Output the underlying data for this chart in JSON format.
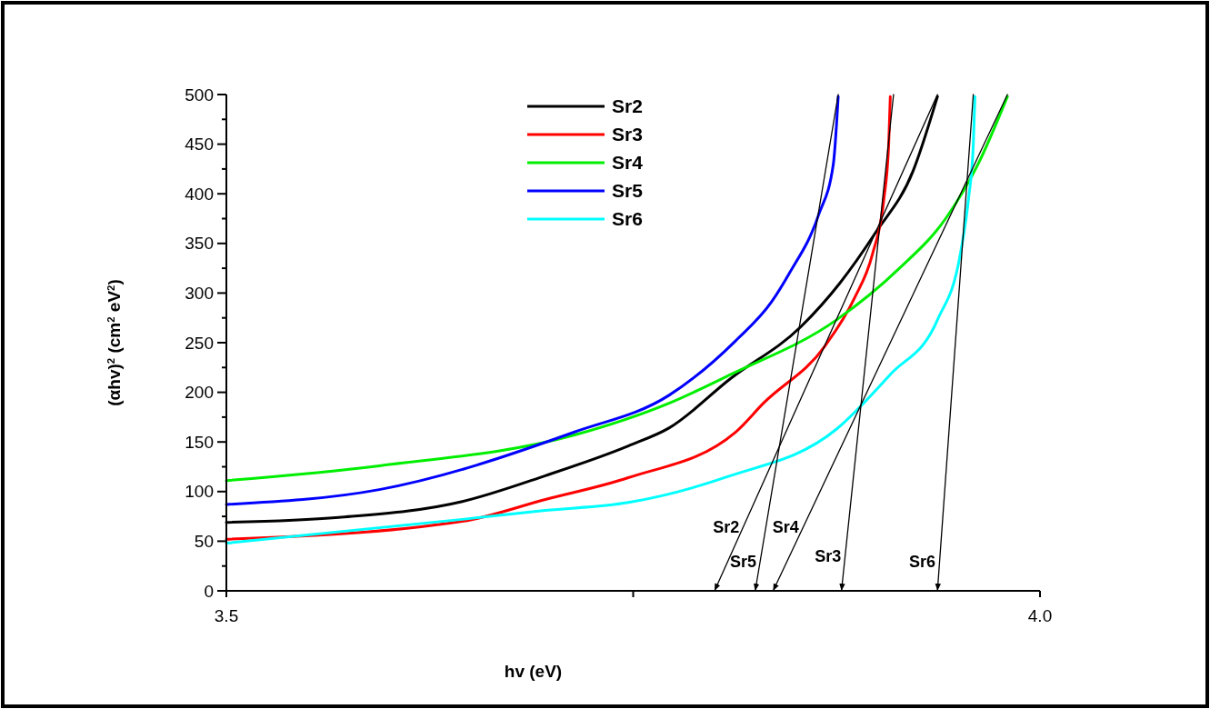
{
  "chart_data": {
    "type": "line",
    "xlabel": "hv (eV)",
    "ylabel": "(αhv)$^{2}$ (cm$^{2}$ eV$^{2}$)",
    "xlim": [
      3.5,
      4.0
    ],
    "xticks": [
      3.5,
      {
        "value": 3.75,
        "label": null
      },
      {
        "value": 4.0,
        "label": "4.0"
      }
    ],
    "ylim": [
      0,
      500
    ],
    "yticks": [
      0,
      {
        "value": 25,
        "label": null
      },
      50,
      {
        "value": 75,
        "label": null
      },
      100,
      {
        "value": 125,
        "label": null
      },
      150,
      {
        "value": 175,
        "label": null
      },
      200,
      {
        "value": 225,
        "label": null
      },
      250,
      {
        "value": 275,
        "label": null
      },
      300,
      {
        "value": 325,
        "label": null
      },
      350,
      {
        "value": 375,
        "label": null
      },
      400,
      {
        "value": 425,
        "label": null
      },
      450,
      {
        "value": 475,
        "label": null
      },
      500
    ],
    "grid": false,
    "legend": "top",
    "marker": "none",
    "line_style": "solid",
    "series": [
      {
        "name": "Sr2",
        "color": "#000000",
        "x": [
          3.5,
          3.569,
          3.645,
          3.696,
          3.747,
          3.772,
          3.81,
          3.853,
          3.877,
          3.899,
          3.922,
          3.937
        ],
        "values": [
          69,
          74,
          90,
          116,
          146,
          164,
          214,
          266,
          310,
          361,
          423,
          498
        ]
      },
      {
        "name": "Sr3",
        "color": "#ff0000",
        "x": [
          3.5,
          3.645,
          3.696,
          3.747,
          3.813,
          3.83,
          3.868,
          3.886,
          3.897,
          3.904,
          3.907,
          3.908
        ],
        "values": [
          52,
          70,
          92,
          114,
          160,
          189,
          247,
          295,
          339,
          394,
          449,
          498
        ]
      },
      {
        "name": "Sr4",
        "color": "#00ee00",
        "x": [
          3.5,
          3.594,
          3.714,
          3.772,
          3.81,
          3.875,
          3.913,
          3.942,
          3.962,
          3.98
        ],
        "values": [
          111,
          126,
          157,
          189,
          218,
          273,
          324,
          375,
          430,
          498
        ]
      },
      {
        "name": "Sr5",
        "color": "#0000ff",
        "x": [
          3.5,
          3.594,
          3.714,
          3.772,
          3.813,
          3.835,
          3.846,
          3.864,
          3.873,
          3.876
        ],
        "values": [
          87,
          102,
          160,
          197,
          252,
          291,
          320,
          379,
          430,
          498
        ]
      },
      {
        "name": "Sr6",
        "color": "#00ffff",
        "x": [
          3.5,
          3.645,
          3.696,
          3.747,
          3.808,
          3.875,
          3.908,
          3.937,
          3.951,
          3.956,
          3.959,
          3.96
        ],
        "values": [
          48,
          72,
          81,
          89,
          115,
          163,
          218,
          273,
          339,
          394,
          449,
          498
        ]
      },
      {
        "type": "line",
        "color": "#000000",
        "x": [
          3.937,
          3.8
        ],
        "values": [
          500,
          0
        ]
      },
      {
        "type": "line",
        "color": "#000000",
        "x": [
          3.876,
          3.825
        ],
        "values": [
          500,
          0
        ]
      },
      {
        "type": "line",
        "color": "#000000",
        "x": [
          3.98,
          3.836
        ],
        "values": [
          500,
          0
        ]
      },
      {
        "type": "line",
        "color": "#000000",
        "x": [
          3.91,
          3.878
        ],
        "values": [
          500,
          0
        ]
      },
      {
        "type": "line",
        "color": "#000000",
        "x": [
          3.959,
          3.937
        ],
        "values": [
          500,
          0
        ]
      }
    ],
    "annotations": [
      {
        "text": "Sr2",
        "x": 3.8175,
        "y": 64
      },
      {
        "text": "Sr5",
        "x": 3.828,
        "y": 30
      },
      {
        "text": "Sr4",
        "x": 3.854,
        "y": 64
      },
      {
        "text": "Sr3",
        "x": 3.88,
        "y": 35
      },
      {
        "text": "Sr6",
        "x": 3.938,
        "y": 30
      }
    ]
  }
}
